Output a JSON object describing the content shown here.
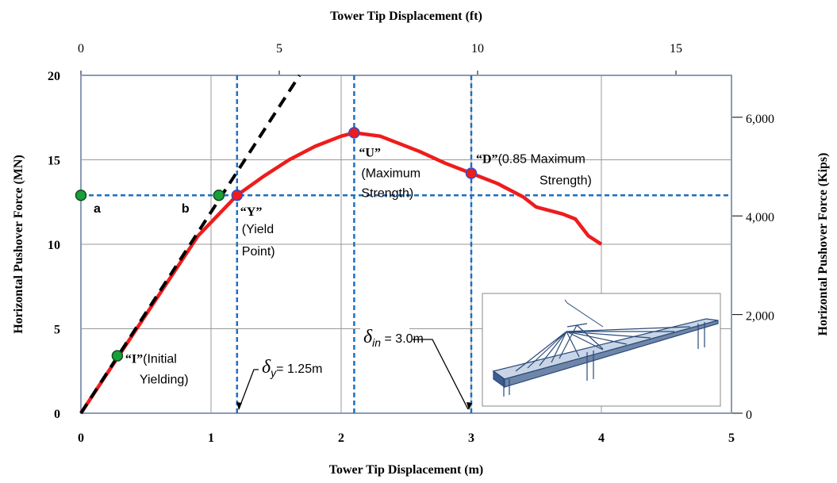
{
  "chart_data": {
    "type": "line",
    "xlabel": "Tower Tip Displacement (m)",
    "x2label": "Tower Tip Displacement (ft)",
    "ylabel": "Horizontal Pushover Force  (MN)",
    "y2label": "Horizontal Pushover Force (Kips)",
    "xlim": [
      0,
      5
    ],
    "xticks": [
      0,
      1,
      2,
      3,
      4,
      5
    ],
    "x2lim": [
      0,
      16.4
    ],
    "x2ticks": [
      0,
      5,
      10,
      15
    ],
    "ylim": [
      0,
      20
    ],
    "yticks": [
      0,
      5,
      10,
      15,
      20
    ],
    "y2lim": [
      0,
      6850
    ],
    "y2ticks": [
      0,
      {
        "value": 2000,
        "label": "2,000"
      },
      {
        "value": 4000,
        "label": "4,000"
      },
      {
        "value": 6000,
        "label": "6,000"
      }
    ],
    "grid": true,
    "series": [
      {
        "color": "#ee1c1c",
        "dash": false,
        "x": [
          0,
          0.3,
          0.6,
          0.9,
          1.2,
          1.4,
          1.6,
          1.8,
          2.0,
          2.1,
          2.3,
          2.6,
          2.8,
          3.0,
          3.2,
          3.4,
          3.5,
          3.7,
          3.8,
          3.9,
          4.0
        ],
        "values": [
          0,
          3.5,
          7,
          10.5,
          12.9,
          14,
          15,
          15.8,
          16.4,
          16.6,
          16.4,
          15.5,
          14.8,
          14.2,
          13.6,
          12.8,
          12.2,
          11.8,
          11.5,
          10.5,
          10
        ]
      },
      {
        "color": "#000000",
        "dash": true,
        "x": [
          0,
          1.68
        ],
        "values": [
          0,
          20
        ]
      }
    ],
    "reference_lines": {
      "color": "#1f6fbf",
      "x": [
        1.2,
        2.1,
        3.0
      ],
      "y": [
        12.9
      ]
    },
    "points": [
      {
        "x": 0,
        "y": 12.9,
        "color": "#1a9e3a",
        "tag": "a",
        "lines": []
      },
      {
        "x": 1.06,
        "y": 12.9,
        "color": "#1a9e3a",
        "tag": "b",
        "lines": []
      },
      {
        "x": 0.28,
        "y": 3.4,
        "color": "#1a9e3a",
        "tag": "“I”",
        "lines": [
          "(Initial",
          "Yielding)"
        ]
      },
      {
        "x": 1.2,
        "y": 12.9,
        "color": "#ee1c1c",
        "tag": "“Y”",
        "lines": [
          "(Yield",
          "Point)"
        ]
      },
      {
        "x": 2.1,
        "y": 16.6,
        "color": "#ee1c1c",
        "tag": "“U”",
        "lines": [
          "(Maximum",
          "Strength)"
        ]
      },
      {
        "x": 3.0,
        "y": 14.2,
        "color": "#ee1c1c",
        "tag": "“D”",
        "lines": [
          "(0.85 Maximum",
          "Strength)"
        ]
      }
    ],
    "deltas": [
      {
        "symbol": "δ",
        "sub": "y",
        "text": "= 1.25m"
      },
      {
        "symbol": "δ",
        "sub": "in",
        "text": " = 3.0m"
      }
    ]
  }
}
